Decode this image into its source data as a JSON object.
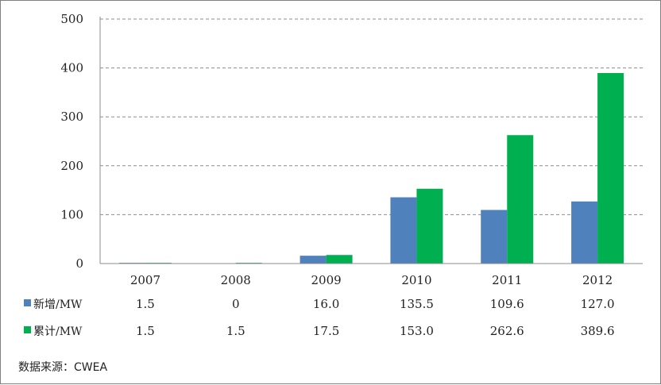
{
  "chart_data": {
    "type": "bar",
    "categories": [
      "2007",
      "2008",
      "2009",
      "2010",
      "2011",
      "2012"
    ],
    "series": [
      {
        "name": "新增/MW",
        "color": "#4f81bd",
        "values": [
          1.5,
          0,
          16.0,
          135.5,
          109.6,
          127.0
        ],
        "labels": [
          "1.5",
          "0",
          "16.0",
          "135.5",
          "109.6",
          "127.0"
        ]
      },
      {
        "name": "累计/MW",
        "color": "#00b050",
        "values": [
          1.5,
          1.5,
          17.5,
          153.0,
          262.6,
          389.6
        ],
        "labels": [
          "1.5",
          "1.5",
          "17.5",
          "153.0",
          "262.6",
          "389.6"
        ]
      }
    ],
    "yticks": [
      "0",
      "100",
      "200",
      "300",
      "400",
      "500"
    ],
    "ylim": [
      0,
      500
    ],
    "grid": "dashed horizontal",
    "legend": "data table below chart"
  },
  "source_note": "数据来源：CWEA"
}
